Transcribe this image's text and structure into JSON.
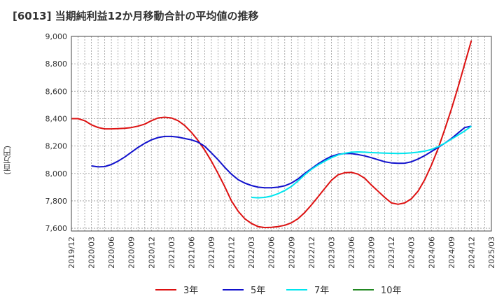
{
  "chart_data": {
    "type": "line",
    "title": "[6013]  当期純利益12か月移動合計の平均値の推移",
    "ylabel": "(百万円)",
    "xlabel": "",
    "ylim": [
      7580,
      9000
    ],
    "yticks": [
      7600,
      7800,
      8000,
      8200,
      8400,
      8600,
      8800,
      9000
    ],
    "ytick_labels": [
      "7,600",
      "7,800",
      "8,000",
      "8,200",
      "8,400",
      "8,600",
      "8,800",
      "9,000"
    ],
    "xticks": [
      "2019/12",
      "2020/03",
      "2020/06",
      "2020/09",
      "2020/12",
      "2021/03",
      "2021/06",
      "2021/09",
      "2021/12",
      "2022/03",
      "2022/06",
      "2022/09",
      "2022/12",
      "2023/03",
      "2023/06",
      "2023/09",
      "2023/12",
      "2024/03",
      "2024/06",
      "2024/09",
      "2024/12",
      "2025/03"
    ],
    "grid": true,
    "legend_position": "bottom",
    "series": [
      {
        "name": "3年",
        "color": "#dd1111",
        "x": [
          "2019/12",
          "2020/01",
          "2020/02",
          "2020/03",
          "2020/04",
          "2020/05",
          "2020/06",
          "2020/07",
          "2020/08",
          "2020/09",
          "2020/10",
          "2020/11",
          "2020/12",
          "2021/01",
          "2021/02",
          "2021/03",
          "2021/04",
          "2021/05",
          "2021/06",
          "2021/07",
          "2021/08",
          "2021/09",
          "2021/10",
          "2021/11",
          "2021/12",
          "2022/01",
          "2022/02",
          "2022/03",
          "2022/04",
          "2022/05",
          "2022/06",
          "2022/07",
          "2022/08",
          "2022/09",
          "2022/10",
          "2022/11",
          "2022/12",
          "2023/01",
          "2023/02",
          "2023/03",
          "2023/04",
          "2023/05",
          "2023/06",
          "2023/07",
          "2023/08",
          "2023/09",
          "2023/10",
          "2023/11",
          "2023/12",
          "2024/01",
          "2024/02",
          "2024/03",
          "2024/04",
          "2024/05",
          "2024/06",
          "2024/07",
          "2024/08",
          "2024/09",
          "2024/10",
          "2024/11",
          "2024/12"
        ],
        "values": [
          8400,
          8400,
          8385,
          8355,
          8335,
          8325,
          8325,
          8327,
          8330,
          8335,
          8345,
          8360,
          8385,
          8405,
          8410,
          8405,
          8385,
          8350,
          8300,
          8240,
          8170,
          8090,
          8000,
          7905,
          7800,
          7725,
          7670,
          7635,
          7612,
          7605,
          7607,
          7612,
          7622,
          7640,
          7670,
          7715,
          7770,
          7830,
          7890,
          7950,
          7990,
          8005,
          8008,
          7995,
          7965,
          7915,
          7870,
          7825,
          7785,
          7775,
          7785,
          7815,
          7870,
          7955,
          8060,
          8180,
          8320,
          8470,
          8630,
          8800,
          8970
        ]
      },
      {
        "name": "5年",
        "color": "#1111cc",
        "x": [
          "2020/03",
          "2020/04",
          "2020/05",
          "2020/06",
          "2020/07",
          "2020/08",
          "2020/09",
          "2020/10",
          "2020/11",
          "2020/12",
          "2021/01",
          "2021/02",
          "2021/03",
          "2021/04",
          "2021/05",
          "2021/06",
          "2021/07",
          "2021/08",
          "2021/09",
          "2021/10",
          "2021/11",
          "2021/12",
          "2022/01",
          "2022/02",
          "2022/03",
          "2022/04",
          "2022/05",
          "2022/06",
          "2022/07",
          "2022/08",
          "2022/09",
          "2022/10",
          "2022/11",
          "2022/12",
          "2023/01",
          "2023/02",
          "2023/03",
          "2023/04",
          "2023/05",
          "2023/06",
          "2023/07",
          "2023/08",
          "2023/09",
          "2023/10",
          "2023/11",
          "2023/12",
          "2024/01",
          "2024/02",
          "2024/03",
          "2024/04",
          "2024/05",
          "2024/06",
          "2024/07",
          "2024/08",
          "2024/09",
          "2024/10",
          "2024/11",
          "2024/12"
        ],
        "values": [
          8055,
          8048,
          8050,
          8065,
          8090,
          8120,
          8155,
          8190,
          8220,
          8245,
          8262,
          8270,
          8270,
          8265,
          8255,
          8245,
          8228,
          8198,
          8150,
          8100,
          8045,
          7995,
          7955,
          7930,
          7912,
          7900,
          7895,
          7895,
          7900,
          7910,
          7930,
          7960,
          8000,
          8035,
          8070,
          8100,
          8125,
          8140,
          8145,
          8145,
          8138,
          8128,
          8115,
          8100,
          8085,
          8077,
          8074,
          8075,
          8085,
          8105,
          8130,
          8160,
          8190,
          8220,
          8255,
          8295,
          8335,
          8345
        ]
      },
      {
        "name": "7年",
        "color": "#00e5ee",
        "x": [
          "2022/03",
          "2022/04",
          "2022/05",
          "2022/06",
          "2022/07",
          "2022/08",
          "2022/09",
          "2022/10",
          "2022/11",
          "2022/12",
          "2023/01",
          "2023/02",
          "2023/03",
          "2023/04",
          "2023/05",
          "2023/06",
          "2023/07",
          "2023/08",
          "2023/09",
          "2023/10",
          "2023/11",
          "2023/12",
          "2024/01",
          "2024/02",
          "2024/03",
          "2024/04",
          "2024/05",
          "2024/06",
          "2024/07",
          "2024/08",
          "2024/09",
          "2024/10",
          "2024/11",
          "2024/12"
        ],
        "values": [
          7825,
          7822,
          7825,
          7835,
          7852,
          7875,
          7905,
          7945,
          7990,
          8030,
          8062,
          8090,
          8115,
          8135,
          8147,
          8155,
          8157,
          8155,
          8152,
          8150,
          8148,
          8147,
          8146,
          8147,
          8150,
          8155,
          8163,
          8175,
          8195,
          8220,
          8250,
          8280,
          8310,
          8345
        ]
      },
      {
        "name": "10年",
        "color": "#228822",
        "x": [],
        "values": []
      }
    ]
  }
}
